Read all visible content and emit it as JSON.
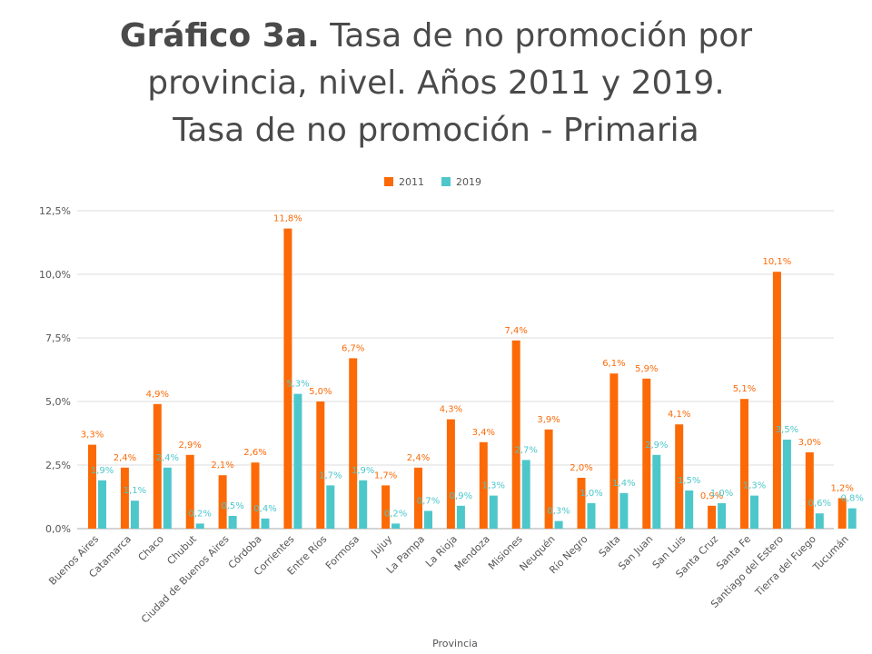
{
  "header": {
    "title_bold": "Gráfico 3a.",
    "title_rest": "Tasa de no promoción por",
    "line2": "provincia, nivel. Años 2011 y 2019.",
    "line3": "Tasa de no promoción - Primaria"
  },
  "colors": {
    "series_2011": "#fb6a07",
    "series_2019": "#4ec7cb",
    "grid": "#dddddd",
    "axis": "#aaaaaa"
  },
  "chart_data": {
    "type": "bar",
    "xlabel": "Provincia",
    "ylabel": "",
    "ylim": [
      0,
      12.5
    ],
    "yticks": [
      0,
      2.5,
      5,
      7.5,
      10,
      12.5
    ],
    "ytick_labels": [
      "0,0%",
      "2,5%",
      "5,0%",
      "7,5%",
      "10,0%",
      "12,5%"
    ],
    "grid": true,
    "legend": "top-center",
    "categories": [
      "Buenos Aires",
      "Catamarca",
      "Chaco",
      "Chubut",
      "Ciudad de Buenos Aires",
      "Córdoba",
      "Corrientes",
      "Entre Ríos",
      "Formosa",
      "Jujuy",
      "La Pampa",
      "La Rioja",
      "Mendoza",
      "Misiones",
      "Neuquén",
      "Río Negro",
      "Salta",
      "San Juan",
      "San Luis",
      "Santa Cruz",
      "Santa Fe",
      "Santiago del Estero",
      "Tierra del Fuego",
      "Tucumán"
    ],
    "series": [
      {
        "name": "2011",
        "values": [
          3.3,
          2.4,
          4.9,
          2.9,
          2.1,
          2.6,
          11.8,
          5.0,
          6.7,
          1.7,
          2.4,
          4.3,
          3.4,
          7.4,
          3.9,
          2.0,
          6.1,
          5.9,
          4.1,
          0.9,
          5.1,
          10.1,
          3.0,
          1.2
        ],
        "labels": [
          "3,3%",
          "2,4%",
          "4,9%",
          "2,9%",
          "2,1%",
          "2,6%",
          "11,8%",
          "5,0%",
          "6,7%",
          "1,7%",
          "2,4%",
          "4,3%",
          "3,4%",
          "7,4%",
          "3,9%",
          "2,0%",
          "6,1%",
          "5,9%",
          "4,1%",
          "0,9%",
          "5,1%",
          "10,1%",
          "3,0%",
          "1,2%"
        ]
      },
      {
        "name": "2019",
        "values": [
          1.9,
          1.1,
          2.4,
          0.2,
          0.5,
          0.4,
          5.3,
          1.7,
          1.9,
          0.2,
          0.7,
          0.9,
          1.3,
          2.7,
          0.3,
          1.0,
          1.4,
          2.9,
          1.5,
          1.0,
          1.3,
          3.5,
          0.6,
          0.8
        ],
        "labels": [
          "1,9%",
          "1,1%",
          "2,4%",
          "0,2%",
          "0,5%",
          "0,4%",
          "5,3%",
          "1,7%",
          "1,9%",
          "0,2%",
          "0,7%",
          "0,9%",
          "1,3%",
          "2,7%",
          "0,3%",
          "1,0%",
          "1,4%",
          "2,9%",
          "1,5%",
          "1,0%",
          "1,3%",
          "3,5%",
          "0,6%",
          "0,8%"
        ]
      }
    ]
  }
}
